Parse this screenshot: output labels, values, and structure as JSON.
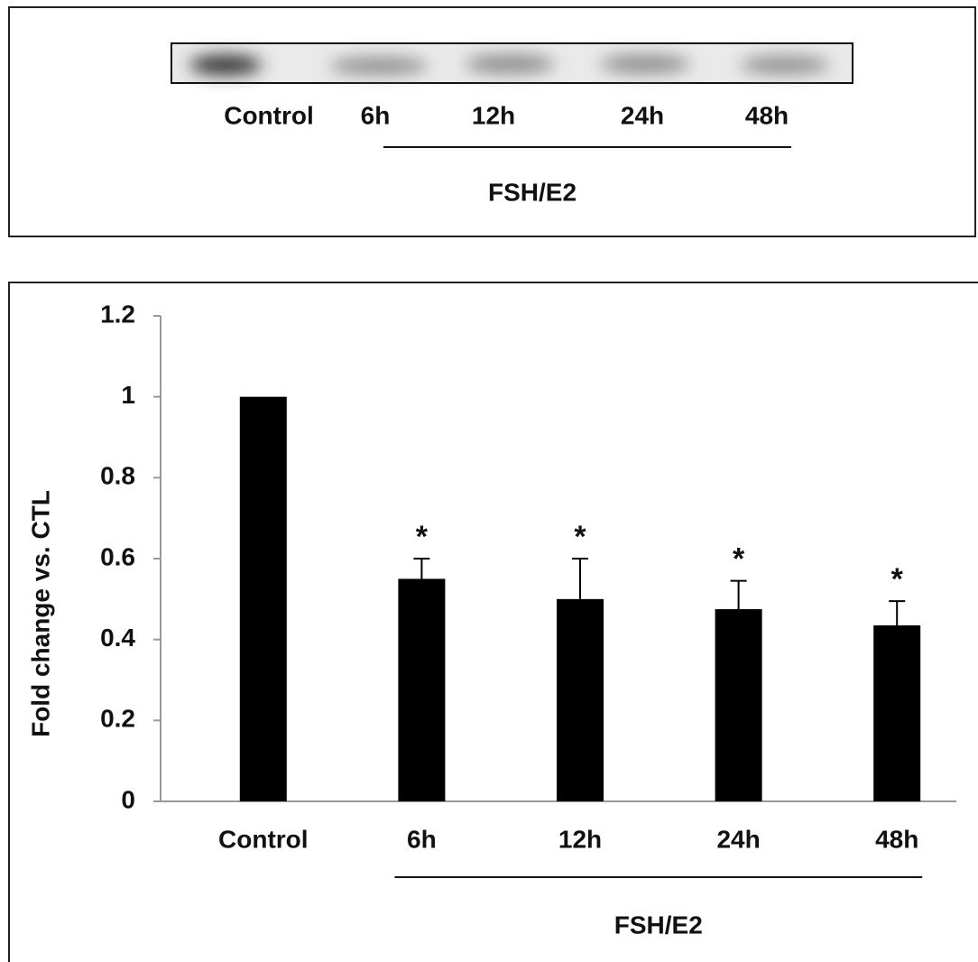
{
  "blot": {
    "lanes": [
      "Control",
      "6h",
      "12h",
      "24h",
      "48h"
    ],
    "group_label": "FSH/E2"
  },
  "chart_data": {
    "type": "bar",
    "y_label": "Fold change vs. CTL",
    "categories": [
      "Control",
      "6h",
      "12h",
      "24h",
      "48h"
    ],
    "values": [
      1,
      0.55,
      0.5,
      0.475,
      0.435
    ],
    "errors": [
      null,
      0.05,
      0.1,
      0.07,
      0.06
    ],
    "annotations": [
      null,
      "*",
      "*",
      "*",
      "*"
    ],
    "group_label": "FSH/E2",
    "color": "#000000",
    "ylim": [
      0,
      1.2
    ],
    "yticks": [
      0,
      0.2,
      0.4,
      0.6,
      0.8,
      1,
      1.2
    ],
    "grid": false
  }
}
